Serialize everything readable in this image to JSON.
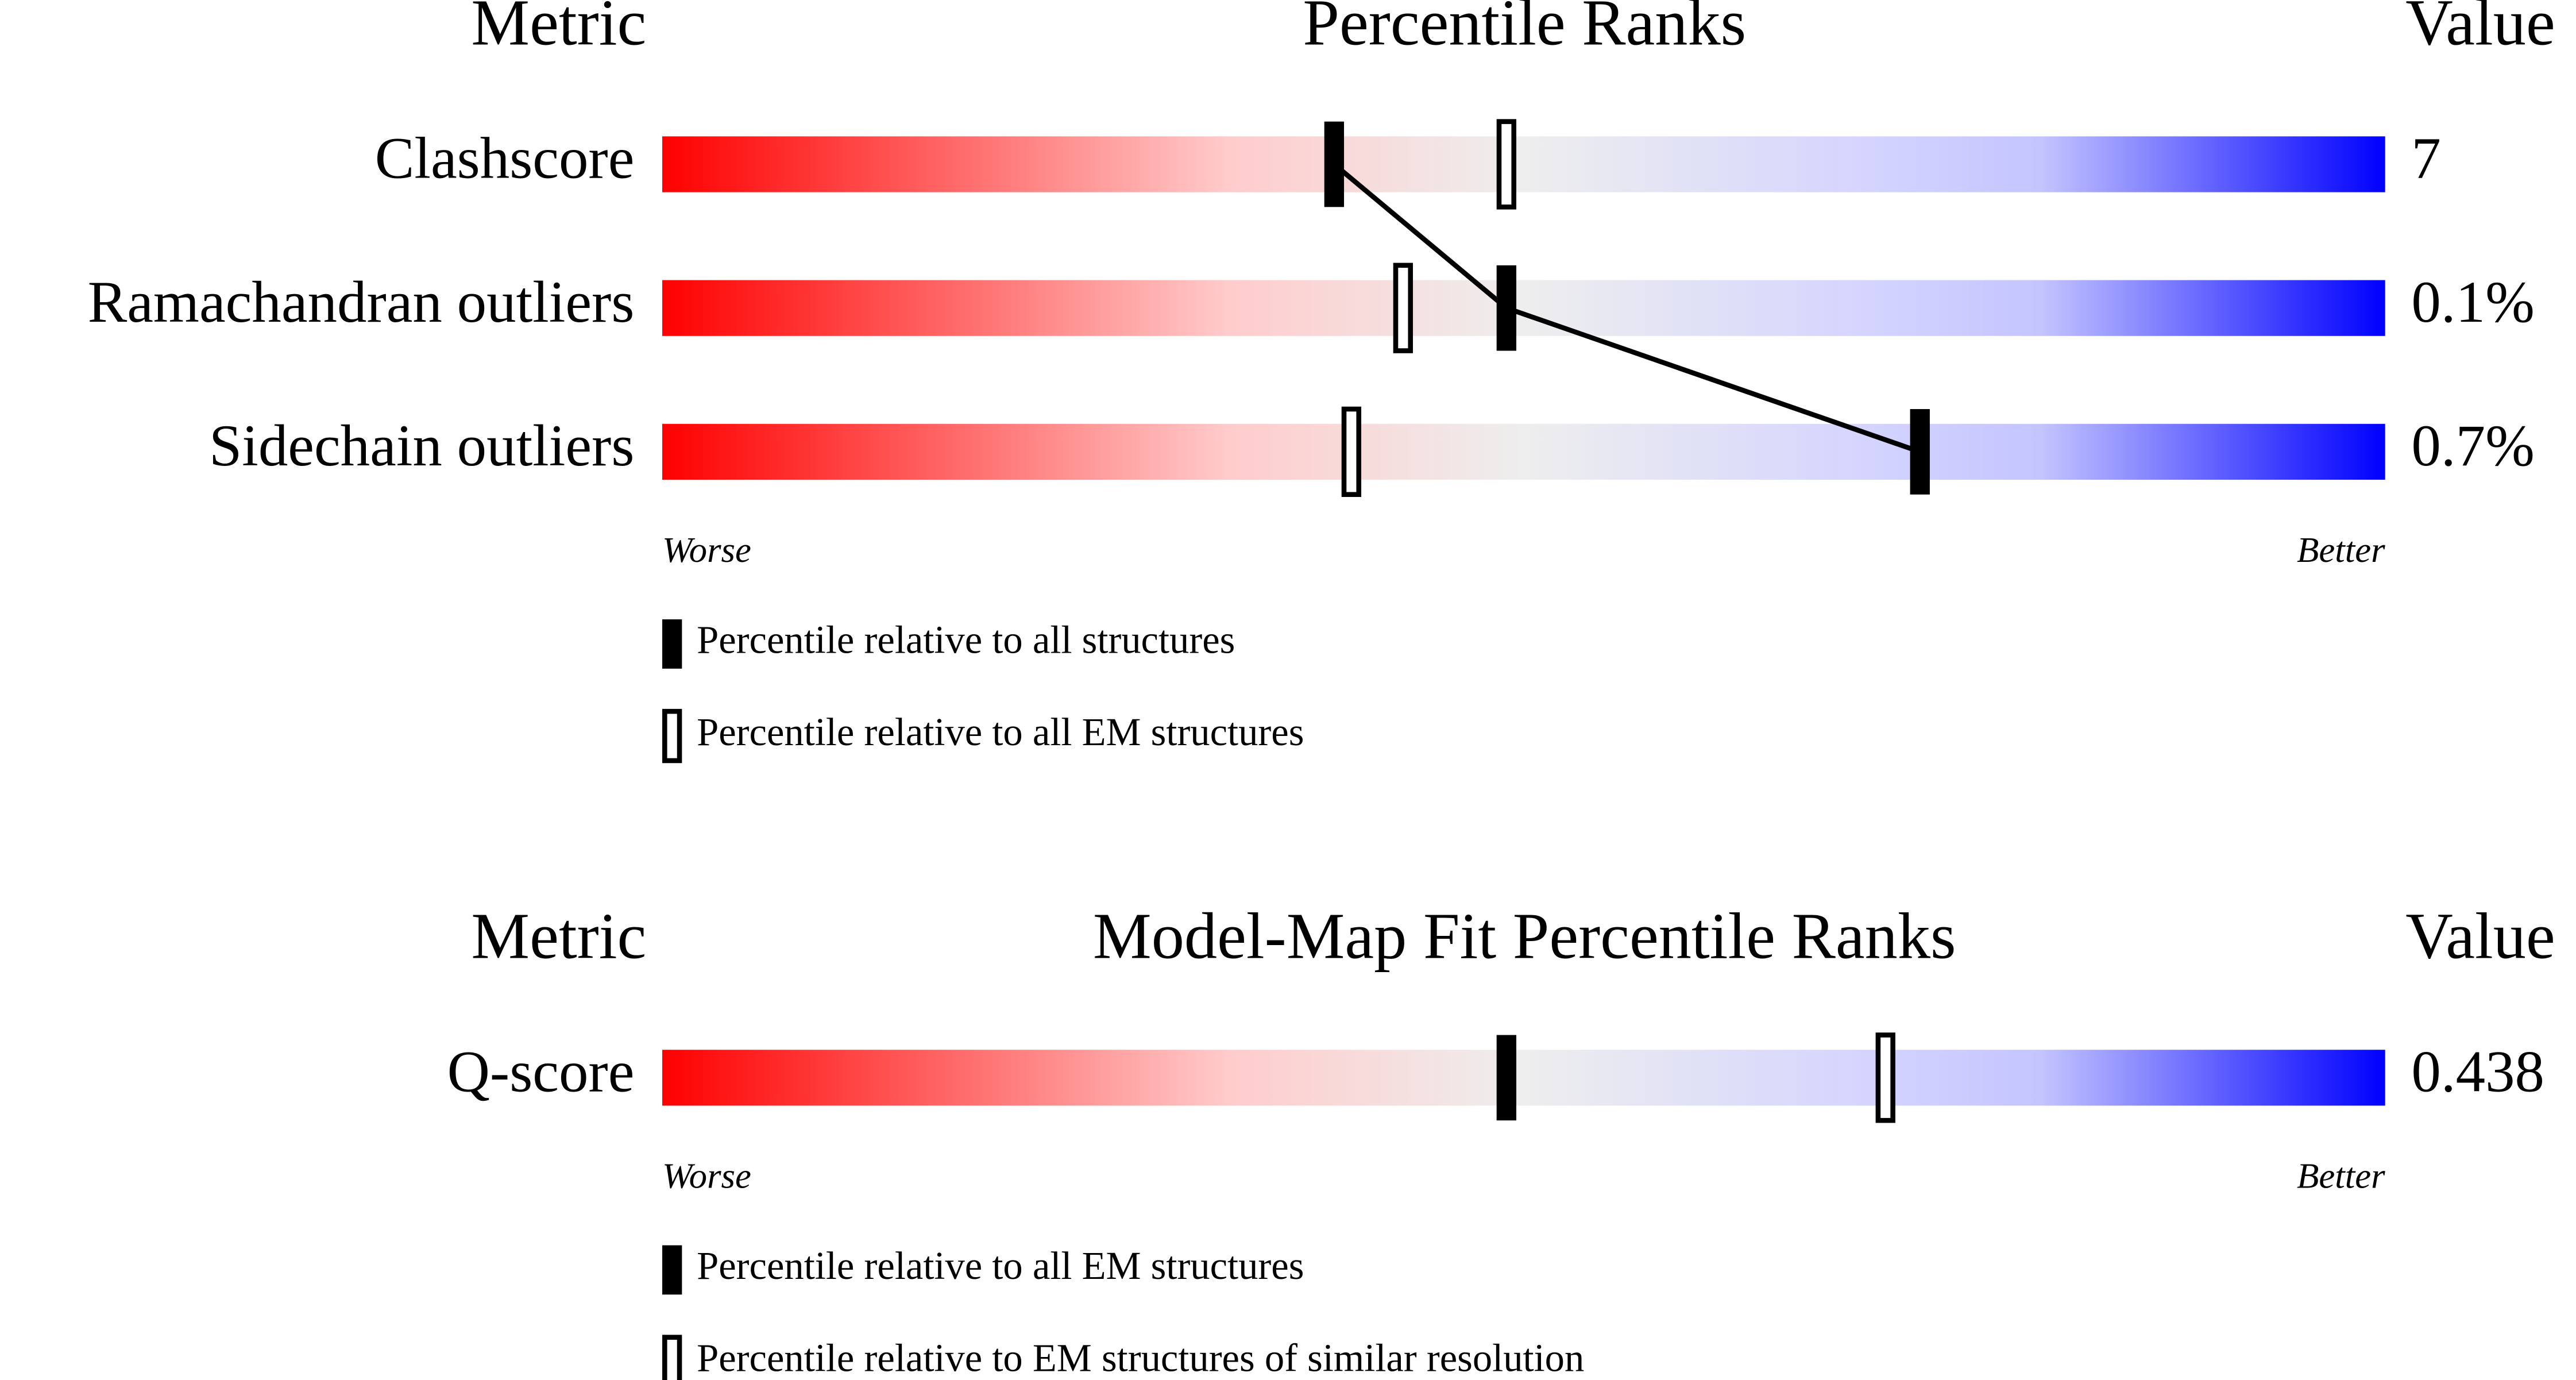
{
  "chart_data": [
    {
      "type": "percentile-slider",
      "metric_header": "Metric",
      "title": "Percentile Ranks",
      "value_header": "Value",
      "metrics": [
        "Clashscore",
        "Ramachandran outliers",
        "Sidechain outliers"
      ],
      "metric_values": [
        "7",
        "0.1%",
        "0.7%"
      ],
      "xlim": [
        0,
        100
      ],
      "worse_label": "Worse",
      "better_label": "Better",
      "series": [
        {
          "name": "Percentile relative to all structures",
          "marker": "filled",
          "color": "#000000",
          "connect": true,
          "values": [
            39,
            49,
            73
          ]
        },
        {
          "name": "Percentile relative to all EM structures",
          "marker": "hollow",
          "color": "#000000",
          "values": [
            49,
            43,
            40
          ]
        }
      ]
    },
    {
      "type": "percentile-slider",
      "metric_header": "Metric",
      "title": "Model-Map Fit Percentile Ranks",
      "value_header": "Value",
      "metrics": [
        "Q-score"
      ],
      "metric_values": [
        "0.438"
      ],
      "xlim": [
        0,
        100
      ],
      "worse_label": "Worse",
      "better_label": "Better",
      "series": [
        {
          "name": "Percentile relative to all EM structures",
          "marker": "filled",
          "color": "#000000",
          "values": [
            49
          ]
        },
        {
          "name": "Percentile relative to EM structures of similar resolution",
          "marker": "hollow",
          "color": "#000000",
          "values": [
            71
          ]
        }
      ]
    }
  ]
}
